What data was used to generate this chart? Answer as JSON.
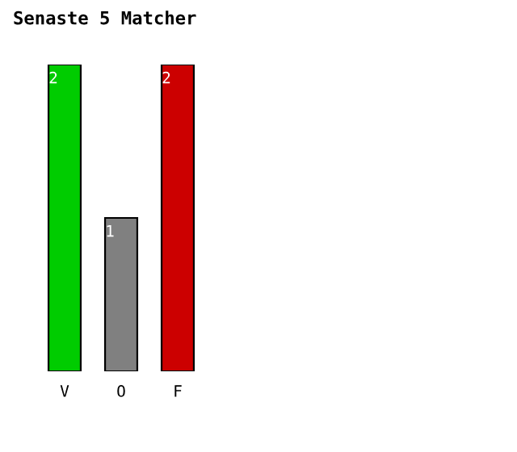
{
  "chart_data": {
    "type": "bar",
    "title": "Senaste 5 Matcher",
    "categories": [
      "V",
      "O",
      "F"
    ],
    "values": [
      2,
      1,
      2
    ],
    "colors": [
      "#00cc00",
      "#808080",
      "#cc0000"
    ],
    "data_labels": true,
    "grid": false,
    "legend": false
  }
}
